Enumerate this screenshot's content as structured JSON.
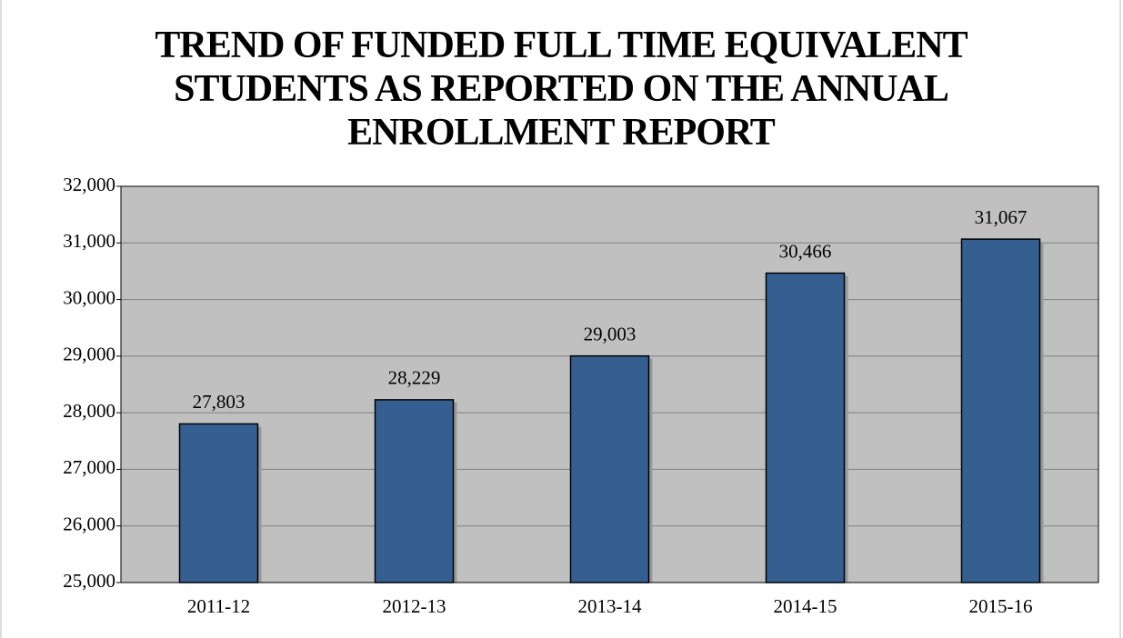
{
  "chart_data": {
    "type": "bar",
    "title": "TREND OF FUNDED FULL TIME EQUIVALENT STUDENTS AS REPORTED ON THE ANNUAL ENROLLMENT REPORT",
    "categories": [
      "2011-12",
      "2012-13",
      "2013-14",
      "2014-15",
      "2015-16"
    ],
    "values": [
      27803,
      28229,
      29003,
      30466,
      31067
    ],
    "value_labels": [
      "27,803",
      "28,229",
      "29,003",
      "30,466",
      "31,067"
    ],
    "color": "#365f91",
    "ylim": [
      25000,
      32000
    ],
    "yticks": [
      {
        "value": 25000,
        "label": "25,000"
      },
      {
        "value": 26000,
        "label": "26,000"
      },
      {
        "value": 27000,
        "label": "27,000"
      },
      {
        "value": 28000,
        "label": "28,000"
      },
      {
        "value": 29000,
        "label": "29,000"
      },
      {
        "value": 30000,
        "label": "30,000"
      },
      {
        "value": 31000,
        "label": "31,000"
      },
      {
        "value": 32000,
        "label": "32,000"
      }
    ],
    "grid": true
  }
}
